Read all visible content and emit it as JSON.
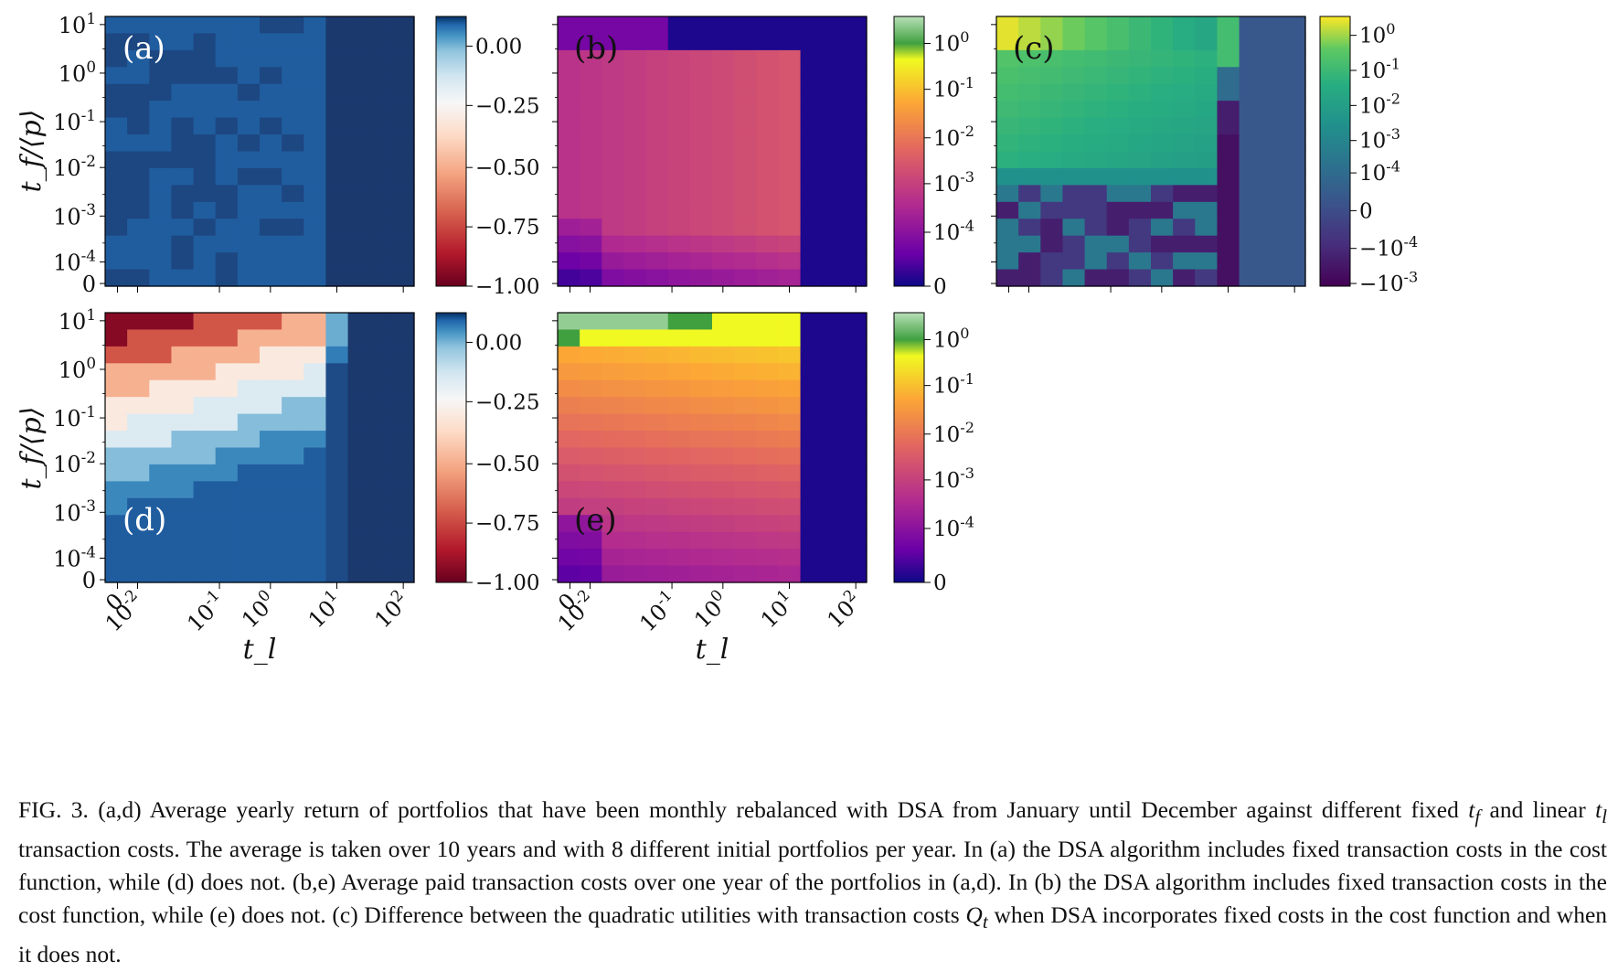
{
  "figure": {
    "y_axis_label": "t_f/⟨p⟩",
    "x_axis_label": "t_l",
    "y_ticks": [
      "10^1",
      "10^0",
      "10^-1",
      "10^-2",
      "10^-3",
      "10^-4",
      "0"
    ],
    "x_ticks": [
      "0",
      "10^-2",
      "10^-1",
      "10^0",
      "10^1",
      "10^2"
    ],
    "panels": [
      {
        "id": "a",
        "label": "(a)",
        "colormap": "RdBu",
        "colorbar_ticks": [
          "0.00",
          "−0.25",
          "−0.50",
          "−0.75",
          "−1.00"
        ]
      },
      {
        "id": "b",
        "label": "(b)",
        "colormap": "plasma-symlog",
        "colorbar_ticks": [
          "10^0",
          "10^-1",
          "10^-2",
          "10^-3",
          "10^-4",
          "0"
        ]
      },
      {
        "id": "c",
        "label": "(c)",
        "colormap": "viridis-symlog",
        "colorbar_ticks": [
          "10^0",
          "10^-1",
          "10^-2",
          "10^-3",
          "10^-4",
          "0",
          "−10^-4",
          "−10^-3"
        ]
      },
      {
        "id": "d",
        "label": "(d)",
        "colormap": "RdBu",
        "colorbar_ticks": [
          "0.00",
          "−0.25",
          "−0.50",
          "−0.75",
          "−1.00"
        ]
      },
      {
        "id": "e",
        "label": "(e)",
        "colormap": "plasma-symlog",
        "colorbar_ticks": [
          "10^0",
          "10^-1",
          "10^-2",
          "10^-3",
          "10^-4",
          "0"
        ]
      }
    ]
  },
  "caption": {
    "fig_label": "FIG. 3.",
    "text_1": "(a,d) Average yearly return of portfolios that have been monthly rebalanced with DSA from January until December against different fixed",
    "tf": "t",
    "tf_sub": "f",
    "text_2": "and linear",
    "tl": "t",
    "tl_sub": "l",
    "text_3": "transaction costs. The average is taken over 10 years and with 8 different initial portfolios per year. In (a) the DSA algorithm includes fixed transaction costs in the cost function, while (d) does not. (b,e) Average paid transaction costs over one year of the portfolios in (a,d). In (b) the DSA algorithm includes fixed transaction costs in the cost function, while (e) does not. (c) Difference between the quadratic utilities with transaction costs",
    "qt": "Q",
    "qt_sub": "t",
    "text_4": "when DSA incorporates fixed costs in the cost function and when it does not."
  }
}
